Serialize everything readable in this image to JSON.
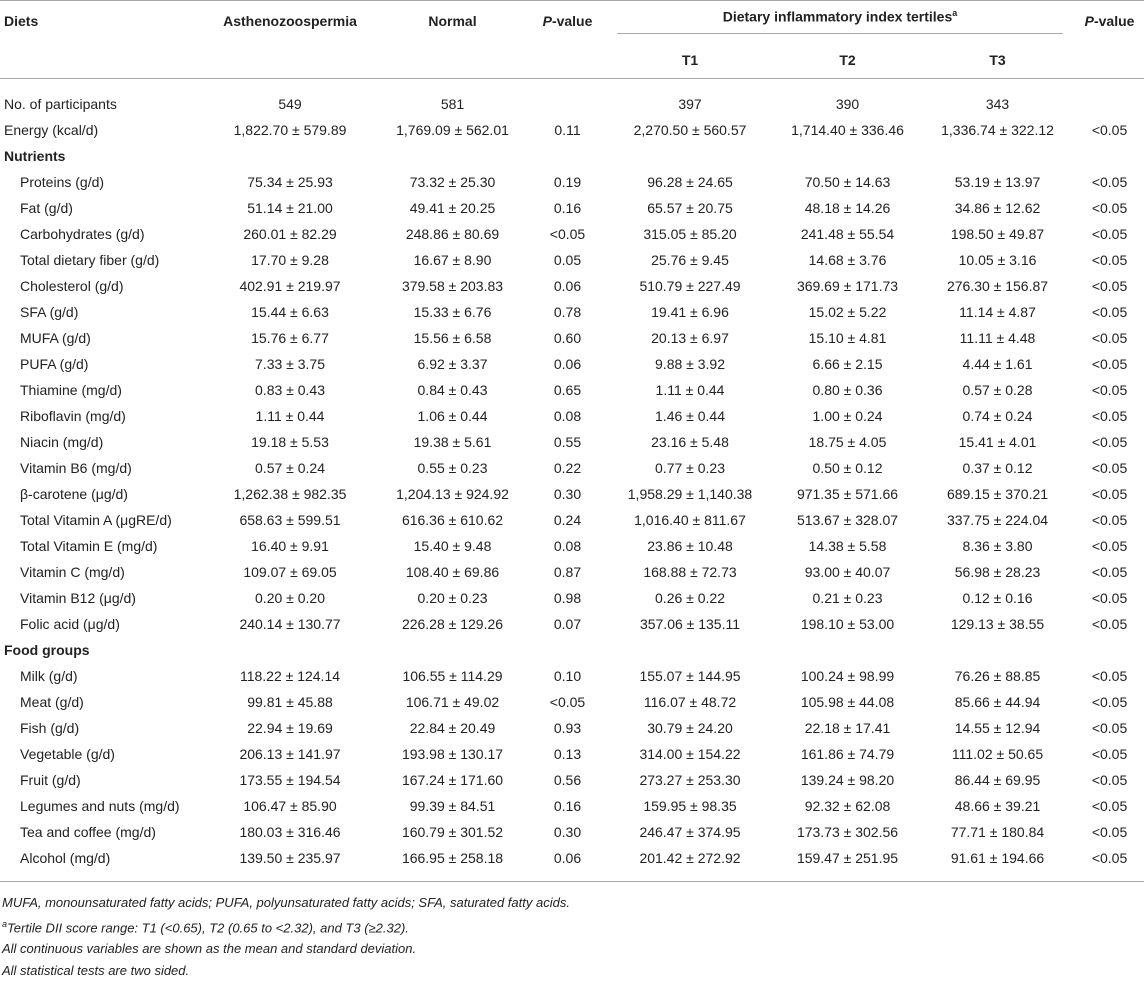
{
  "table": {
    "header": {
      "diets": "Diets",
      "asthenozoospermia": "Asthenozoospermia",
      "normal": "Normal",
      "p_value": "P-value",
      "dii": {
        "text": "Dietary inflammatory index tertiles",
        "note": "a"
      },
      "tertiles": [
        "T1",
        "T2",
        "T3"
      ],
      "p_value_2": "P-value"
    },
    "body": [
      {
        "rows": [
          [
            "No. of participants",
            "549",
            "581",
            null,
            "397",
            "390",
            "343",
            null
          ],
          [
            "Energy (kcal/d)",
            "1,822.70 ± 579.89",
            "1,769.09 ± 562.01",
            "0.11",
            "2,270.50 ± 560.57",
            "1,714.40 ± 336.46",
            "1,336.74 ± 322.12",
            "<0.05"
          ]
        ]
      },
      {
        "title": "Nutrients",
        "rows": [
          [
            "Proteins (g/d)",
            "75.34 ± 25.93",
            "73.32 ± 25.30",
            "0.19",
            "96.28 ± 24.65",
            "70.50 ± 14.63",
            "53.19 ± 13.97",
            "<0.05"
          ],
          [
            "Fat (g/d)",
            "51.14 ± 21.00",
            "49.41 ± 20.25",
            "0.16",
            "65.57 ± 20.75",
            "48.18 ± 14.26",
            "34.86 ± 12.62",
            "<0.05"
          ],
          [
            "Carbohydrates (g/d)",
            "260.01 ± 82.29",
            "248.86 ± 80.69",
            "<0.05",
            "315.05 ± 85.20",
            "241.48 ± 55.54",
            "198.50 ± 49.87",
            "<0.05"
          ],
          [
            "Total dietary fiber (g/d)",
            "17.70 ± 9.28",
            "16.67 ± 8.90",
            "0.05",
            "25.76 ± 9.45",
            "14.68 ± 3.76",
            "10.05 ± 3.16",
            "<0.05"
          ],
          [
            "Cholesterol (g/d)",
            "402.91 ± 219.97",
            "379.58 ± 203.83",
            "0.06",
            "510.79 ± 227.49",
            "369.69 ± 171.73",
            "276.30 ± 156.87",
            "<0.05"
          ],
          [
            "SFA (g/d)",
            "15.44 ± 6.63",
            "15.33 ± 6.76",
            "0.78",
            "19.41 ± 6.96",
            "15.02 ± 5.22",
            "11.14 ± 4.87",
            "<0.05"
          ],
          [
            "MUFA (g/d)",
            "15.76 ± 6.77",
            "15.56 ± 6.58",
            "0.60",
            "20.13 ± 6.97",
            "15.10 ± 4.81",
            "11.11 ± 4.48",
            "<0.05"
          ],
          [
            "PUFA (g/d)",
            "7.33 ± 3.75",
            "6.92 ± 3.37",
            "0.06",
            "9.88 ± 3.92",
            "6.66 ± 2.15",
            "4.44 ± 1.61",
            "<0.05"
          ],
          [
            "Thiamine (mg/d)",
            "0.83 ± 0.43",
            "0.84 ± 0.43",
            "0.65",
            "1.11 ± 0.44",
            "0.80 ± 0.36",
            "0.57 ± 0.28",
            "<0.05"
          ],
          [
            "Riboflavin (mg/d)",
            "1.11 ± 0.44",
            "1.06 ± 0.44",
            "0.08",
            "1.46 ± 0.44",
            "1.00 ± 0.24",
            "0.74 ± 0.24",
            "<0.05"
          ],
          [
            "Niacin (mg/d)",
            "19.18 ± 5.53",
            "19.38 ± 5.61",
            "0.55",
            "23.16 ± 5.48",
            "18.75 ± 4.05",
            "15.41 ± 4.01",
            "<0.05"
          ],
          [
            "Vitamin B6 (mg/d)",
            "0.57 ± 0.24",
            "0.55 ± 0.23",
            "0.22",
            "0.77 ± 0.23",
            "0.50 ± 0.12",
            "0.37 ± 0.12",
            "<0.05"
          ],
          [
            "β-carotene (μg/d)",
            "1,262.38 ± 982.35",
            "1,204.13 ± 924.92",
            "0.30",
            "1,958.29 ± 1,140.38",
            "971.35 ± 571.66",
            "689.15 ± 370.21",
            "<0.05"
          ],
          [
            "Total Vitamin A (μgRE/d)",
            "658.63 ± 599.51",
            "616.36 ± 610.62",
            "0.24",
            "1,016.40 ± 811.67",
            "513.67 ± 328.07",
            "337.75 ± 224.04",
            "<0.05"
          ],
          [
            "Total Vitamin E (mg/d)",
            "16.40 ± 9.91",
            "15.40 ± 9.48",
            "0.08",
            "23.86 ± 10.48",
            "14.38 ± 5.58",
            "8.36 ± 3.80",
            "<0.05"
          ],
          [
            "Vitamin C (mg/d)",
            "109.07 ± 69.05",
            "108.40 ± 69.86",
            "0.87",
            "168.88 ± 72.73",
            "93.00 ± 40.07",
            "56.98 ± 28.23",
            "<0.05"
          ],
          [
            "Vitamin B12 (μg/d)",
            "0.20 ± 0.20",
            "0.20 ± 0.23",
            "0.98",
            "0.26 ± 0.22",
            "0.21 ± 0.23",
            "0.12 ± 0.16",
            "<0.05"
          ],
          [
            "Folic acid (μg/d)",
            "240.14 ± 130.77",
            "226.28 ± 129.26",
            "0.07",
            "357.06 ± 135.11",
            "198.10 ± 53.00",
            "129.13 ± 38.55",
            "<0.05"
          ]
        ]
      },
      {
        "title": "Food groups",
        "rows": [
          [
            "Milk (g/d)",
            "118.22 ± 124.14",
            "106.55 ± 114.29",
            "0.10",
            "155.07 ± 144.95",
            "100.24 ± 98.99",
            "76.26 ± 88.85",
            "<0.05"
          ],
          [
            "Meat (g/d)",
            "99.81 ± 45.88",
            "106.71 ± 49.02",
            "<0.05",
            "116.07 ± 48.72",
            "105.98 ± 44.08",
            "85.66 ± 44.94",
            "<0.05"
          ],
          [
            "Fish (g/d)",
            "22.94 ± 19.69",
            "22.84 ± 20.49",
            "0.93",
            "30.79 ± 24.20",
            "22.18 ± 17.41",
            "14.55 ± 12.94",
            "<0.05"
          ],
          [
            "Vegetable (g/d)",
            "206.13 ± 141.97",
            "193.98 ± 130.17",
            "0.13",
            "314.00 ± 154.22",
            "161.86 ± 74.79",
            "111.02 ± 50.65",
            "<0.05"
          ],
          [
            "Fruit (g/d)",
            "173.55 ± 194.54",
            "167.24 ± 171.60",
            "0.56",
            "273.27 ± 253.30",
            "139.24 ± 98.20",
            "86.44 ± 69.95",
            "<0.05"
          ],
          [
            "Legumes and nuts (mg/d)",
            "106.47 ± 85.90",
            "99.39 ± 84.51",
            "0.16",
            "159.95 ± 98.35",
            "92.32 ± 62.08",
            "48.66 ± 39.21",
            "<0.05"
          ],
          [
            "Tea and coffee (mg/d)",
            "180.03 ± 316.46",
            "160.79 ± 301.52",
            "0.30",
            "246.47 ± 374.95",
            "173.73 ± 302.56",
            "77.71 ± 180.84",
            "<0.05"
          ],
          [
            "Alcohol (mg/d)",
            "139.50 ± 235.97",
            "166.95 ± 258.18",
            "0.06",
            "201.42 ± 272.92",
            "159.47 ± 251.95",
            "91.61 ± 194.66",
            "<0.05"
          ]
        ]
      }
    ]
  },
  "footnotes": {
    "abbreviations": "MUFA, monounsaturated fatty acids; PUFA, polyunsaturated fatty acids; SFA, saturated fatty acids.",
    "tertile": {
      "marker": "a",
      "text": "Tertile DII score range: T1 (<0.65), T2 (0.65 to <2.32), and T3 (≥2.32)."
    },
    "continuous": "All continuous variables are shown as the mean and standard deviation.",
    "tests": "All statistical tests are two sided."
  }
}
